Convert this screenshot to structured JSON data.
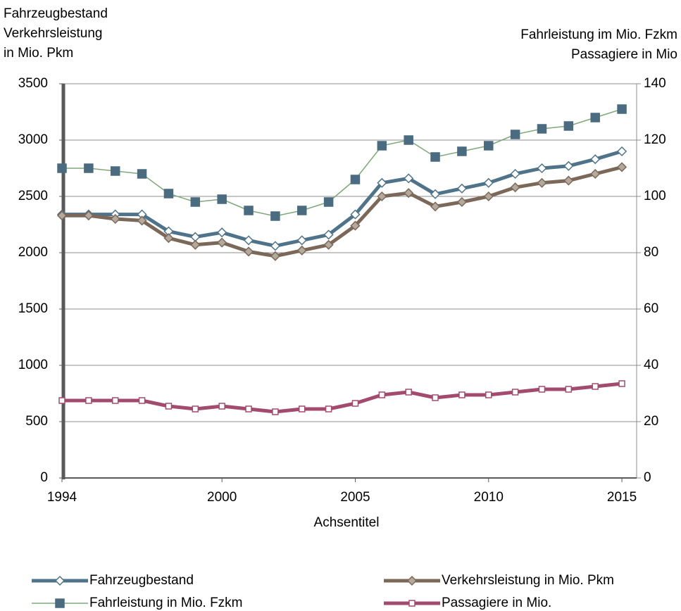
{
  "chart_data": {
    "type": "line",
    "y_axis_title": [
      "Fahrzeugbestand",
      "Verkehrsleistung",
      "in Mio. Pkm"
    ],
    "y2_axis_title": [
      "Fahrleistung im Mio. Fzkm",
      "Passagiere in Mio"
    ],
    "x_axis_title": "Achsentitel",
    "x": [
      1994,
      1995,
      1996,
      1997,
      1998,
      1999,
      2000,
      2001,
      2002,
      2003,
      2004,
      2005,
      2006,
      2007,
      2008,
      2009,
      2010,
      2011,
      2012,
      2013,
      2014,
      2015
    ],
    "xlim": [
      1994,
      2015.5
    ],
    "xticks": [
      1994,
      2000,
      2005,
      2010,
      2015
    ],
    "ylim": [
      0,
      3500
    ],
    "yticks": [
      0,
      500,
      1000,
      1500,
      2000,
      2500,
      3000,
      3500
    ],
    "y2lim": [
      0,
      140
    ],
    "y2ticks": [
      0,
      20,
      40,
      60,
      80,
      100,
      120,
      140
    ],
    "grid": true,
    "legend": "bottom",
    "series": [
      {
        "name": "Fahrzeugbestand",
        "color": "#4f7389",
        "marker": "diamond",
        "marker_color": "#ffffff",
        "values": [
          2340,
          2340,
          2340,
          2340,
          2190,
          2140,
          2180,
          2110,
          2060,
          2110,
          2160,
          2340,
          2620,
          2660,
          2520,
          2570,
          2620,
          2700,
          2750,
          2770,
          2830,
          2900
        ]
      },
      {
        "name": "Verkehrsleistung in Mio. Pkm",
        "color": "#7b6858",
        "marker": "diamond",
        "marker_color": "#b3a99c",
        "values": [
          2330,
          2330,
          2300,
          2285,
          2130,
          2070,
          2090,
          2010,
          1970,
          2020,
          2070,
          2240,
          2500,
          2530,
          2410,
          2450,
          2500,
          2580,
          2620,
          2640,
          2700,
          2760
        ]
      },
      {
        "name": "Fahrleistung in Mio. Fzkm",
        "color": "#7fa87a",
        "marker": "square",
        "marker_color": "#4a6b80",
        "axis": "y2",
        "values": [
          110,
          110,
          109,
          108,
          101,
          98,
          99,
          95,
          93,
          95,
          98,
          106,
          118,
          120,
          114,
          116,
          118,
          122,
          124,
          125,
          128,
          131
        ]
      },
      {
        "name": "Passagiere in Mio.",
        "color": "#a24b6e",
        "marker": "square",
        "marker_color": "#ffffff",
        "axis": "y2",
        "values": [
          27.5,
          27.5,
          27.5,
          27.5,
          25.5,
          24.5,
          25.5,
          24.5,
          23.5,
          24.5,
          24.5,
          26.5,
          29.5,
          30.5,
          28.5,
          29.5,
          29.5,
          30.5,
          31.5,
          31.5,
          32.5,
          33.5
        ]
      }
    ]
  }
}
